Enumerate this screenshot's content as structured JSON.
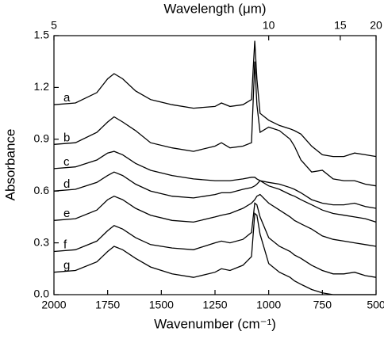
{
  "chart_data": {
    "type": "line",
    "xlabel": "Wavenumber (cm⁻¹)",
    "ylabel": "Absorbance",
    "top_xlabel": "Wavelength (μm)",
    "x": [
      2000,
      1900,
      1800,
      1750,
      1720,
      1680,
      1620,
      1550,
      1450,
      1350,
      1250,
      1220,
      1180,
      1120,
      1080,
      1065,
      1055,
      1040,
      1000,
      950,
      900,
      880,
      850,
      800,
      750,
      700,
      650,
      600,
      550,
      500
    ],
    "series": [
      {
        "name": "a",
        "color": "#000000",
        "values": [
          1.1,
          1.11,
          1.17,
          1.25,
          1.28,
          1.25,
          1.18,
          1.13,
          1.1,
          1.08,
          1.09,
          1.11,
          1.09,
          1.1,
          1.13,
          1.47,
          1.25,
          1.05,
          1.01,
          0.98,
          0.96,
          0.95,
          0.93,
          0.86,
          0.81,
          0.8,
          0.8,
          0.82,
          0.81,
          0.8
        ]
      },
      {
        "name": "b",
        "color": "#000000",
        "values": [
          0.87,
          0.88,
          0.94,
          1.0,
          1.03,
          1.0,
          0.95,
          0.88,
          0.85,
          0.83,
          0.86,
          0.88,
          0.85,
          0.86,
          0.88,
          1.35,
          1.1,
          0.94,
          0.97,
          0.95,
          0.9,
          0.86,
          0.78,
          0.71,
          0.72,
          0.67,
          0.66,
          0.66,
          0.64,
          0.63
        ]
      },
      {
        "name": "c",
        "color": "#000000",
        "values": [
          0.73,
          0.74,
          0.78,
          0.82,
          0.83,
          0.81,
          0.76,
          0.72,
          0.69,
          0.67,
          0.66,
          0.66,
          0.66,
          0.67,
          0.68,
          0.68,
          0.67,
          0.66,
          0.65,
          0.64,
          0.62,
          0.61,
          0.59,
          0.55,
          0.53,
          0.52,
          0.52,
          0.53,
          0.51,
          0.5
        ]
      },
      {
        "name": "d",
        "color": "#000000",
        "values": [
          0.6,
          0.61,
          0.65,
          0.69,
          0.71,
          0.69,
          0.64,
          0.6,
          0.57,
          0.56,
          0.58,
          0.59,
          0.59,
          0.61,
          0.62,
          0.63,
          0.64,
          0.66,
          0.63,
          0.61,
          0.58,
          0.57,
          0.55,
          0.52,
          0.49,
          0.47,
          0.46,
          0.45,
          0.44,
          0.42
        ]
      },
      {
        "name": "e",
        "color": "#000000",
        "values": [
          0.43,
          0.44,
          0.49,
          0.55,
          0.57,
          0.55,
          0.5,
          0.46,
          0.43,
          0.42,
          0.45,
          0.46,
          0.47,
          0.5,
          0.53,
          0.55,
          0.57,
          0.58,
          0.53,
          0.49,
          0.45,
          0.43,
          0.41,
          0.38,
          0.34,
          0.32,
          0.31,
          0.3,
          0.29,
          0.28
        ]
      },
      {
        "name": "f",
        "color": "#000000",
        "values": [
          0.25,
          0.26,
          0.31,
          0.37,
          0.4,
          0.38,
          0.33,
          0.29,
          0.27,
          0.26,
          0.3,
          0.31,
          0.3,
          0.32,
          0.36,
          0.53,
          0.52,
          0.45,
          0.33,
          0.28,
          0.25,
          0.23,
          0.21,
          0.17,
          0.14,
          0.12,
          0.12,
          0.13,
          0.11,
          0.1
        ]
      },
      {
        "name": "g",
        "color": "#000000",
        "values": [
          0.13,
          0.14,
          0.19,
          0.25,
          0.28,
          0.26,
          0.21,
          0.16,
          0.12,
          0.1,
          0.13,
          0.15,
          0.14,
          0.17,
          0.22,
          0.47,
          0.46,
          0.35,
          0.18,
          0.13,
          0.1,
          0.08,
          0.06,
          0.03,
          0.01,
          0.0,
          0.0,
          0.0,
          0.0,
          0.0
        ]
      }
    ],
    "xlim": [
      2000,
      500
    ],
    "xticks": [
      2000,
      1750,
      1500,
      1250,
      1000,
      750,
      500
    ],
    "ylim": [
      0,
      1.5
    ],
    "yticks": [
      {
        "value": 0,
        "label": "0.0"
      },
      0.3,
      0.6,
      0.9,
      1.2,
      1.5
    ],
    "top_xticks": [
      5,
      10,
      15,
      20
    ]
  }
}
